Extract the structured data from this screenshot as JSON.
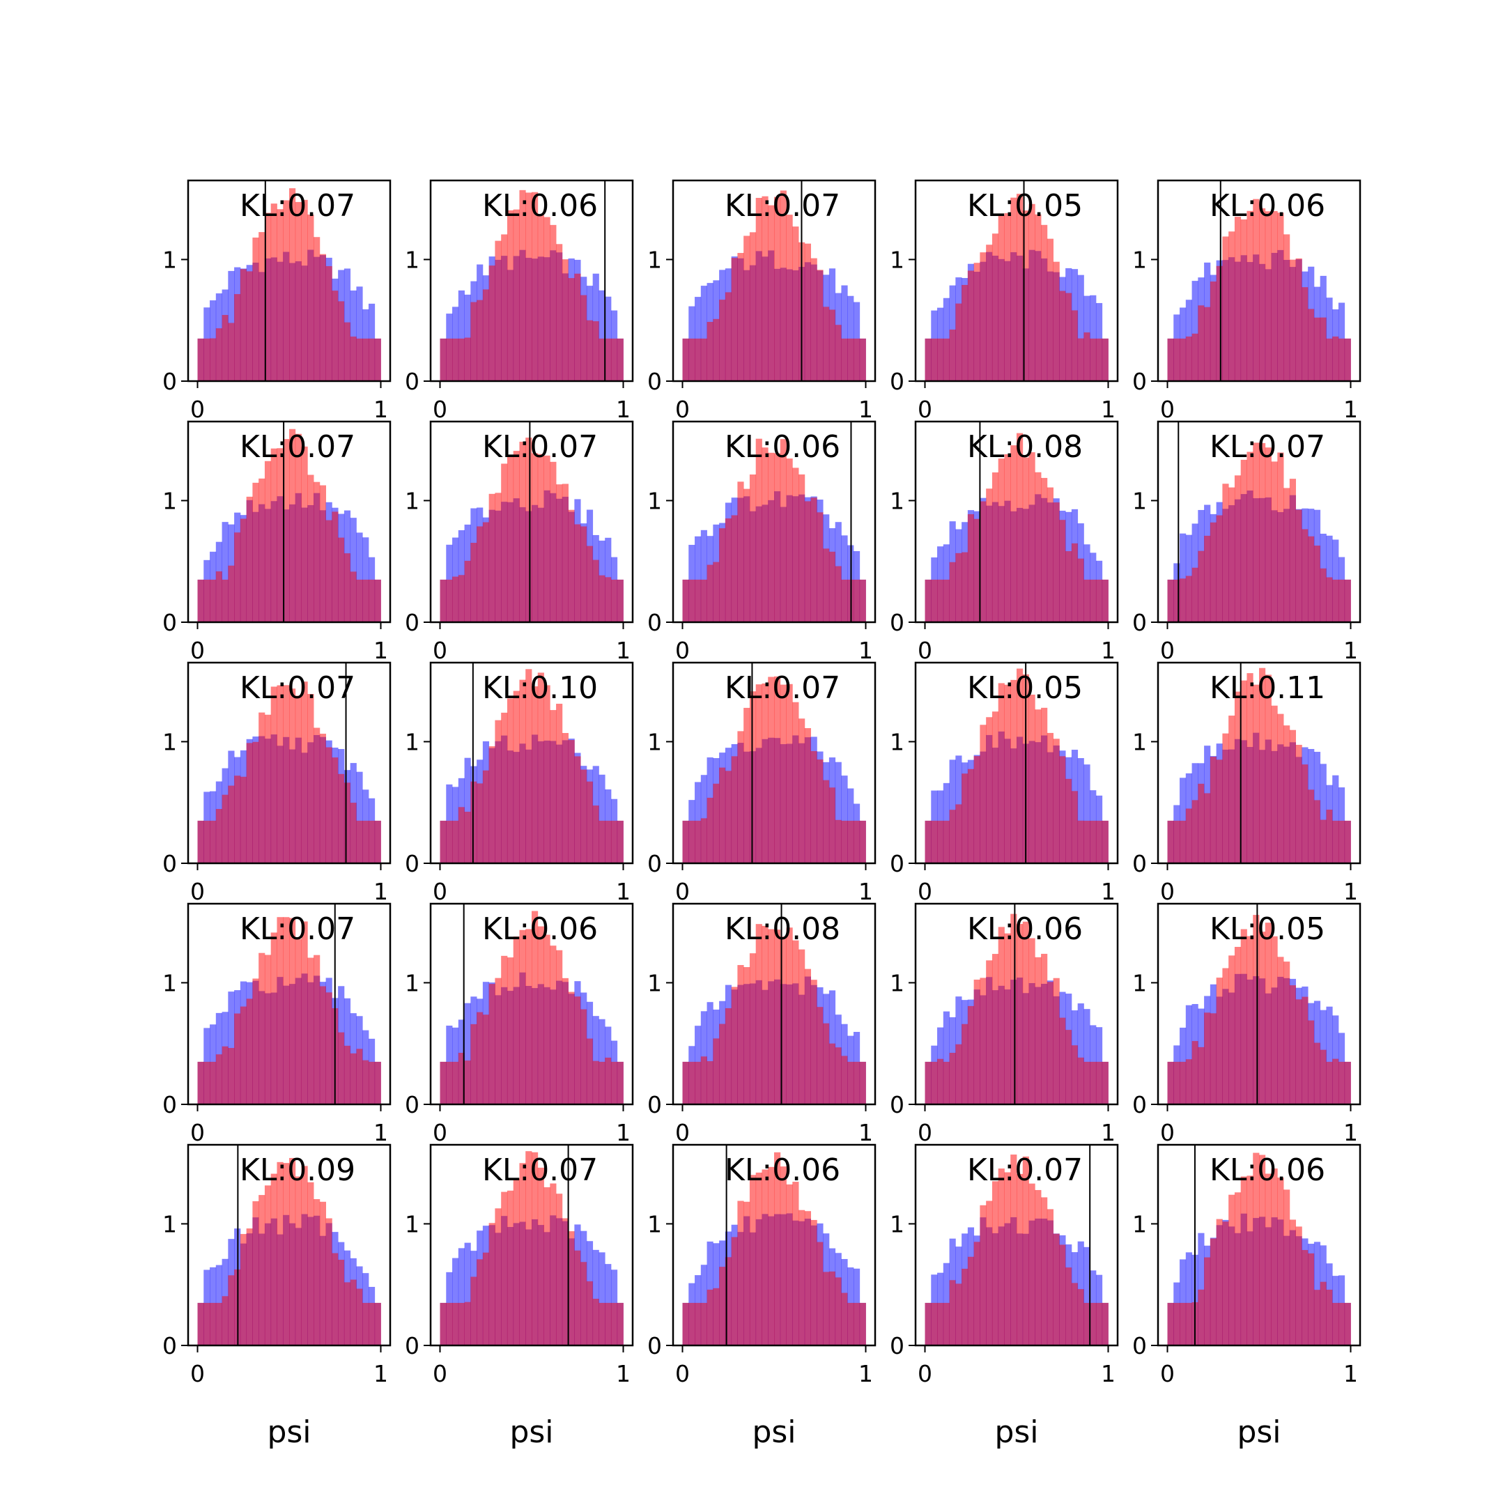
{
  "chart_data": {
    "type": "histogram-grid",
    "rows": 5,
    "cols": 5,
    "bins": 30,
    "xlim": [
      0,
      1
    ],
    "ylim": [
      0,
      1.65
    ],
    "xticks": [
      "0",
      "1"
    ],
    "yticks": [
      "0",
      "1"
    ],
    "xlabel": "psi",
    "colors": {
      "blue": "#0000ff",
      "red": "#ff0000",
      "alpha": 0.5,
      "line": "#000000"
    },
    "panels": [
      {
        "kl": "KL:0.07",
        "vline": 0.37
      },
      {
        "kl": "KL:0.06",
        "vline": 0.9
      },
      {
        "kl": "KL:0.07",
        "vline": 0.65
      },
      {
        "kl": "KL:0.05",
        "vline": 0.54
      },
      {
        "kl": "KL:0.06",
        "vline": 0.29
      },
      {
        "kl": "KL:0.07",
        "vline": 0.47
      },
      {
        "kl": "KL:0.07",
        "vline": 0.49
      },
      {
        "kl": "KL:0.06",
        "vline": 0.92
      },
      {
        "kl": "KL:0.08",
        "vline": 0.3
      },
      {
        "kl": "KL:0.07",
        "vline": 0.06
      },
      {
        "kl": "KL:0.07",
        "vline": 0.81
      },
      {
        "kl": "KL:0.10",
        "vline": 0.18
      },
      {
        "kl": "KL:0.07",
        "vline": 0.38
      },
      {
        "kl": "KL:0.05",
        "vline": 0.55
      },
      {
        "kl": "KL:0.11",
        "vline": 0.4
      },
      {
        "kl": "KL:0.07",
        "vline": 0.75
      },
      {
        "kl": "KL:0.06",
        "vline": 0.13
      },
      {
        "kl": "KL:0.08",
        "vline": 0.54
      },
      {
        "kl": "KL:0.06",
        "vline": 0.49
      },
      {
        "kl": "KL:0.05",
        "vline": 0.49
      },
      {
        "kl": "KL:0.09",
        "vline": 0.22
      },
      {
        "kl": "KL:0.07",
        "vline": 0.7
      },
      {
        "kl": "KL:0.06",
        "vline": 0.24
      },
      {
        "kl": "KL:0.07",
        "vline": 0.9
      },
      {
        "kl": "KL:0.06",
        "vline": 0.15
      }
    ]
  }
}
